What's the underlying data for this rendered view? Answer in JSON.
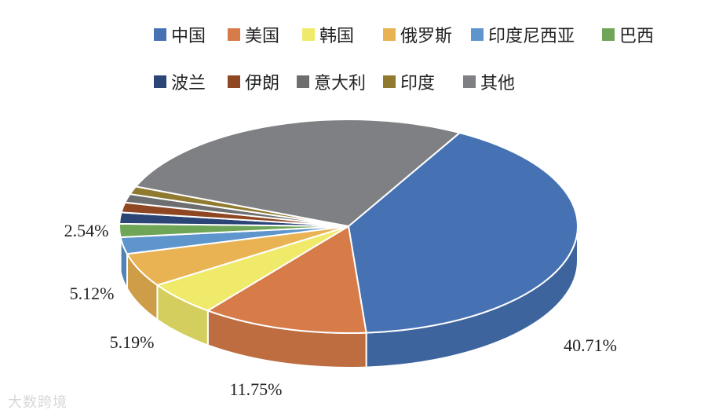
{
  "chart_data": {
    "type": "pie",
    "title": "",
    "categories": [
      "中国",
      "美国",
      "韩国",
      "俄罗斯",
      "印度尼西亚",
      "巴西",
      "波兰",
      "伊朗",
      "意大利",
      "印度",
      "其他"
    ],
    "values": [
      40.71,
      11.75,
      5.19,
      5.12,
      2.54,
      2.0,
      1.7,
      1.5,
      1.3,
      1.2,
      26.99
    ],
    "data_labels": [
      "40.71%",
      "11.75%",
      "5.19%",
      "5.12%",
      "2.54%",
      "",
      "",
      "",
      "",
      "",
      ""
    ],
    "colors": [
      "#4672b4",
      "#d77c49",
      "#f0ea6a",
      "#e9b252",
      "#5e95cc",
      "#6fa557",
      "#2b4576",
      "#8e4623",
      "#6d6e70",
      "#8f7a30",
      "#7f8083"
    ],
    "legend_position": "top",
    "style": "3d"
  },
  "watermark": "大数跨境"
}
